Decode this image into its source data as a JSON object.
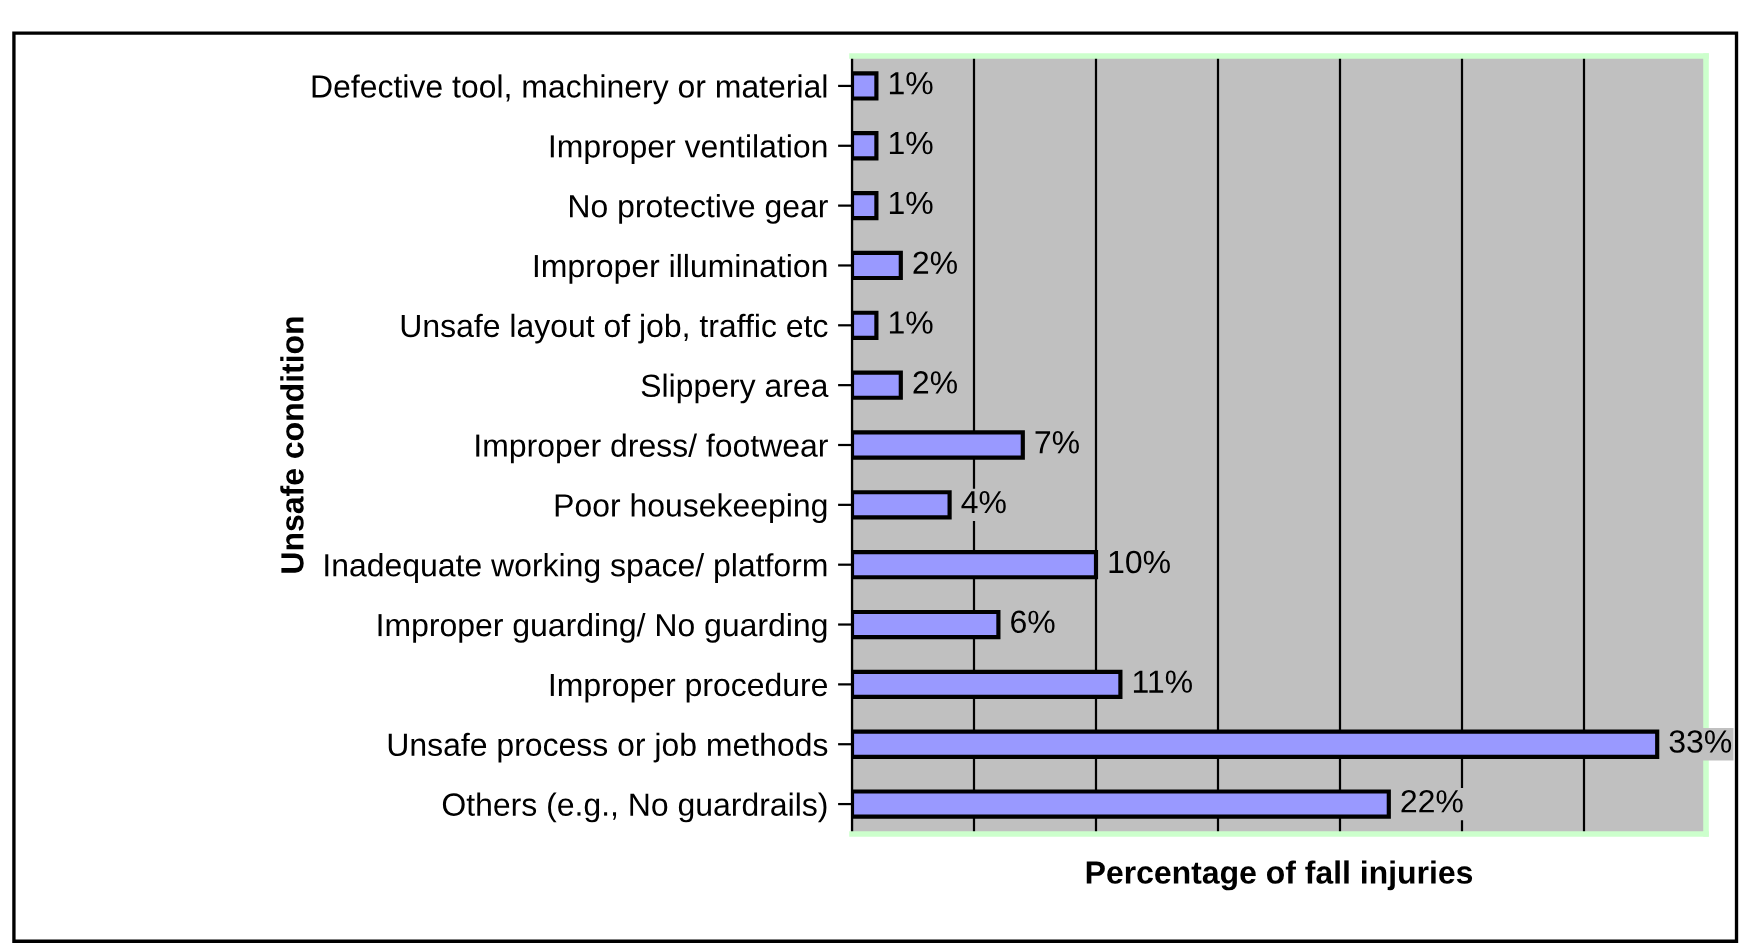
{
  "chart_data": {
    "type": "bar",
    "orientation": "horizontal",
    "xlabel": "Percentage of fall injuries",
    "ylabel": "Unsafe condition",
    "categories": [
      "Defective tool, machinery or material",
      "Improper ventilation",
      "No protective gear",
      "Improper illumination",
      "Unsafe layout of job, traffic etc",
      "Slippery area",
      "Improper dress/ footwear",
      "Poor housekeeping",
      "Inadequate working space/ platform",
      "Improper guarding/ No guarding",
      "Improper procedure",
      "Unsafe process or job methods",
      "Others (e.g., No guardrails)"
    ],
    "values": [
      1,
      1,
      1,
      2,
      1,
      2,
      7,
      4,
      10,
      6,
      11,
      33,
      22
    ],
    "value_labels": [
      "1%",
      "1%",
      "1%",
      "2%",
      "1%",
      "2%",
      "7%",
      "4%",
      "10%",
      "6%",
      "11%",
      "33%",
      "22%"
    ],
    "color": "#9999ff",
    "xlim": [
      0,
      35
    ],
    "xticks": [
      {
        "value": 0,
        "label": null
      },
      {
        "value": 5,
        "label": null
      },
      {
        "value": 10,
        "label": null
      },
      {
        "value": 15,
        "label": null
      },
      {
        "value": 20,
        "label": null
      },
      {
        "value": 25,
        "label": null
      },
      {
        "value": 30,
        "label": null
      },
      {
        "value": 35,
        "label": null
      }
    ],
    "grid": "x",
    "legend": false
  }
}
